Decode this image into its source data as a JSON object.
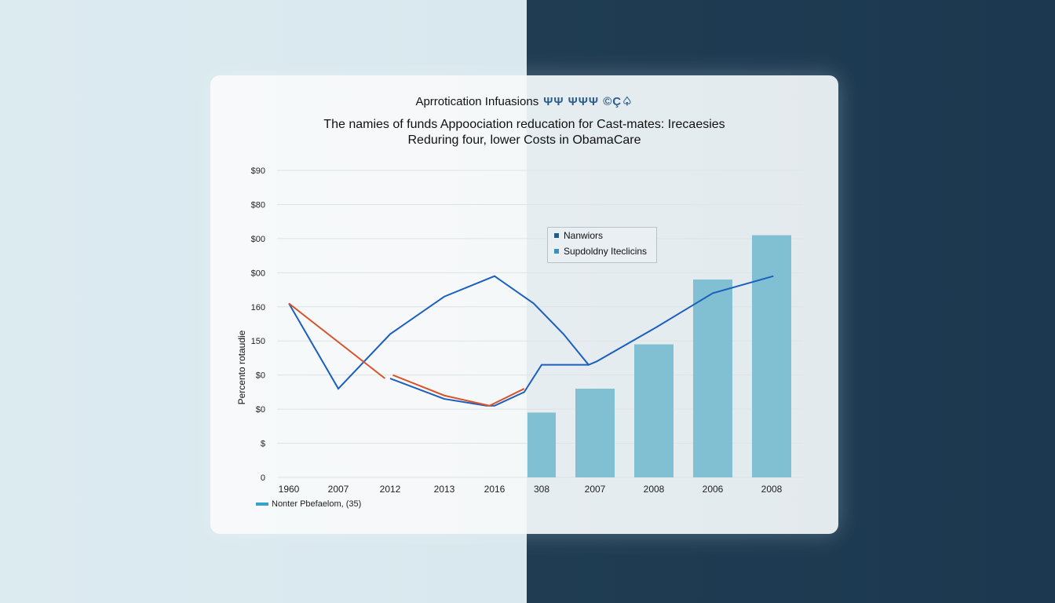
{
  "chart_data": {
    "type": "bar+line",
    "title": "Aprrotication Infuasions",
    "subtitle_lines": [
      "The namies of funds Appoociation reducation for Cast-mates: Irecaesies",
      "Reduring four, lower Costs in ObamaCare"
    ],
    "ylabel": "Percento rotaudie",
    "xlabel": "",
    "categories": [
      "1960",
      "2007",
      "2012",
      "2013",
      "2016",
      "308",
      "2007",
      "2008",
      "2006",
      "2008"
    ],
    "y_tick_labels": [
      "0",
      "$",
      "$0",
      "$0",
      "150",
      "160",
      "$00",
      "$00",
      "$80",
      "$90"
    ],
    "ylim": [
      0,
      90
    ],
    "grid": true,
    "legend": {
      "placement": "upper-right",
      "items": [
        {
          "label": "Nanwiors",
          "color": "#1f5f8b"
        },
        {
          "label": "Supdoldny Iteclicins",
          "color": "#3a93b8"
        }
      ]
    },
    "bottom_legend": {
      "label": "Nonter Pbefaelom, (35)",
      "color": "#3aa0cc"
    },
    "bars": {
      "color": "#80c0d2",
      "x": [
        5,
        6,
        7,
        8,
        9
      ],
      "values": [
        19,
        26,
        39,
        58,
        71
      ]
    },
    "series": [
      {
        "color": "#1b5fbf",
        "points": [
          [
            0,
            51
          ],
          [
            1,
            26
          ],
          [
            2,
            42
          ],
          [
            3,
            53
          ],
          [
            4,
            59
          ],
          [
            4.83,
            51
          ],
          [
            5.41,
            42
          ],
          [
            5.88,
            33
          ],
          [
            6.03,
            34
          ],
          [
            7.04,
            44
          ],
          [
            8,
            54
          ],
          [
            9.03,
            59
          ]
        ]
      },
      {
        "color": "#1b5fbf",
        "points": [
          [
            2,
            29
          ],
          [
            3,
            23
          ],
          [
            3.84,
            21
          ],
          [
            4,
            21
          ],
          [
            4.63,
            25
          ],
          [
            5,
            33
          ],
          [
            5.88,
            33
          ]
        ]
      },
      {
        "color": "#d9532a",
        "points": [
          [
            0,
            51
          ],
          [
            1.9,
            29
          ]
        ]
      },
      {
        "color": "#d9532a",
        "points": [
          [
            2.05,
            30
          ],
          [
            3,
            24
          ],
          [
            3.9,
            21
          ],
          [
            4.63,
            26
          ]
        ]
      }
    ]
  }
}
